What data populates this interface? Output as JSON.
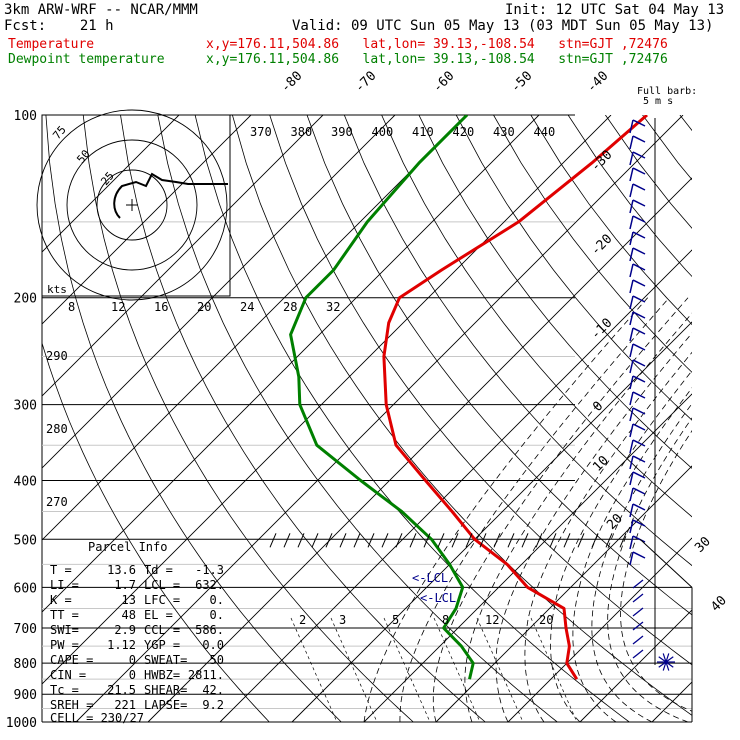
{
  "header": {
    "model": "3km ARW-WRF -- NCAR/MMM",
    "init": "Init: 12 UTC Sat 04 May 13",
    "fcst": "Fcst:    21 h",
    "valid": "Valid: 09 UTC Sun 05 May 13 (03 MDT Sun 05 May 13)",
    "temp_label": "Temperature",
    "dew_label": "Dewpoint temperature",
    "loc_line": "x,y=176.11,504.86   lat,lon= 39.13,-108.54   stn=GJT ,72476",
    "barb_note": "Full barb:\n5 m s"
  },
  "colors": {
    "temperature": "#e00000",
    "dewpoint": "#008000",
    "grid": "#000000",
    "parcel": "#00008b"
  },
  "chart_data": {
    "type": "line",
    "subtype": "skew-T log-P sounding",
    "yscale": "log-pressure",
    "pressure_levels": [
      "100",
      "200",
      "300",
      "400",
      "500",
      "600",
      "700",
      "800",
      "900",
      "1000"
    ],
    "isotherm_labels": [
      "-80",
      "-70",
      "-60",
      "-50",
      "-40",
      "-30",
      "-20",
      "-10",
      "0",
      "10",
      "20",
      "30",
      "40"
    ],
    "theta_labels": [
      "370",
      "380",
      "390",
      "400",
      "410",
      "420",
      "430",
      "440"
    ],
    "theta_low_labels": [
      "290",
      "280",
      "270"
    ],
    "mixing_ratio_labels": [
      "2",
      "3",
      "5",
      "8",
      "12",
      "20"
    ],
    "hodograph": {
      "units": "kts",
      "ring_labels": [
        "75",
        "50",
        "25"
      ],
      "axis_labels": [
        "8",
        "12",
        "16",
        "20",
        "24",
        "28",
        "32"
      ]
    },
    "lcl_labels": [
      "<-LCL",
      "<-LCL"
    ],
    "series": [
      {
        "name": "Temperature",
        "color": "#e00000",
        "points": [
          [
            100,
            -55
          ],
          [
            120,
            -56
          ],
          [
            150,
            -58
          ],
          [
            180,
            -62
          ],
          [
            200,
            -64
          ],
          [
            220,
            -62
          ],
          [
            250,
            -58
          ],
          [
            300,
            -51
          ],
          [
            350,
            -44
          ],
          [
            400,
            -35
          ],
          [
            450,
            -27
          ],
          [
            500,
            -20
          ],
          [
            550,
            -12
          ],
          [
            600,
            -6
          ],
          [
            650,
            2
          ],
          [
            700,
            5
          ],
          [
            750,
            8
          ],
          [
            800,
            10
          ],
          [
            850,
            13.6
          ]
        ]
      },
      {
        "name": "Dewpoint temperature",
        "color": "#008000",
        "points": [
          [
            100,
            -80
          ],
          [
            120,
            -80
          ],
          [
            150,
            -79
          ],
          [
            180,
            -77
          ],
          [
            200,
            -77
          ],
          [
            230,
            -74
          ],
          [
            270,
            -67
          ],
          [
            300,
            -63
          ],
          [
            350,
            -55
          ],
          [
            400,
            -44
          ],
          [
            450,
            -34
          ],
          [
            500,
            -26
          ],
          [
            550,
            -20
          ],
          [
            600,
            -15
          ],
          [
            650,
            -13
          ],
          [
            700,
            -12
          ],
          [
            750,
            -7
          ],
          [
            800,
            -3
          ],
          [
            850,
            -1.3
          ]
        ]
      }
    ]
  },
  "parcel_info": {
    "title": "Parcel Info",
    "rows": [
      {
        "a": "T  =",
        "b": "13.6",
        "c": "Td =",
        "d": "-1.3"
      },
      {
        "a": "LI =",
        "b": "1.7",
        "c": "LCL =",
        "d": "632."
      },
      {
        "a": "K  =",
        "b": "13",
        "c": "LFC =",
        "d": "0."
      },
      {
        "a": "TT =",
        "b": "48",
        "c": "EL =",
        "d": "0."
      },
      {
        "a": "SWI=",
        "b": "2.9",
        "c": "CCL =",
        "d": "586."
      },
      {
        "a": "PW =",
        "b": "1.12",
        "c": "YGP =",
        "d": "0.0"
      },
      {
        "a": "CAPE =",
        "b": "0",
        "c": "SWEAT=",
        "d": "50"
      },
      {
        "a": "CIN =",
        "b": "0",
        "c": "HWBZ=",
        "d": "2811."
      },
      {
        "a": "Tc =",
        "b": "21.5",
        "c": "SHEAR=",
        "d": "42."
      },
      {
        "a": "SREH =",
        "b": "221",
        "c": "LAPSE=",
        "d": "9.2"
      }
    ],
    "cell": "CELL = 230/27"
  }
}
